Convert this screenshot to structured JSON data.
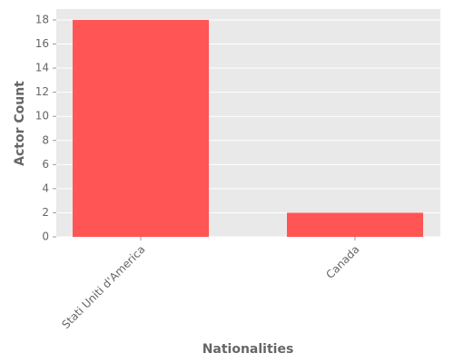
{
  "chart_data": {
    "type": "bar",
    "categories": [
      "Stati Uniti d'America",
      "Canada"
    ],
    "values": [
      18,
      2
    ],
    "color": "#ff5555",
    "x_label": "Nationalities",
    "y_label": "Actor Count",
    "ylim": [
      0,
      18.9
    ],
    "yticks": [
      0,
      2,
      4,
      6,
      8,
      10,
      12,
      14,
      16,
      18
    ],
    "grid": true
  }
}
